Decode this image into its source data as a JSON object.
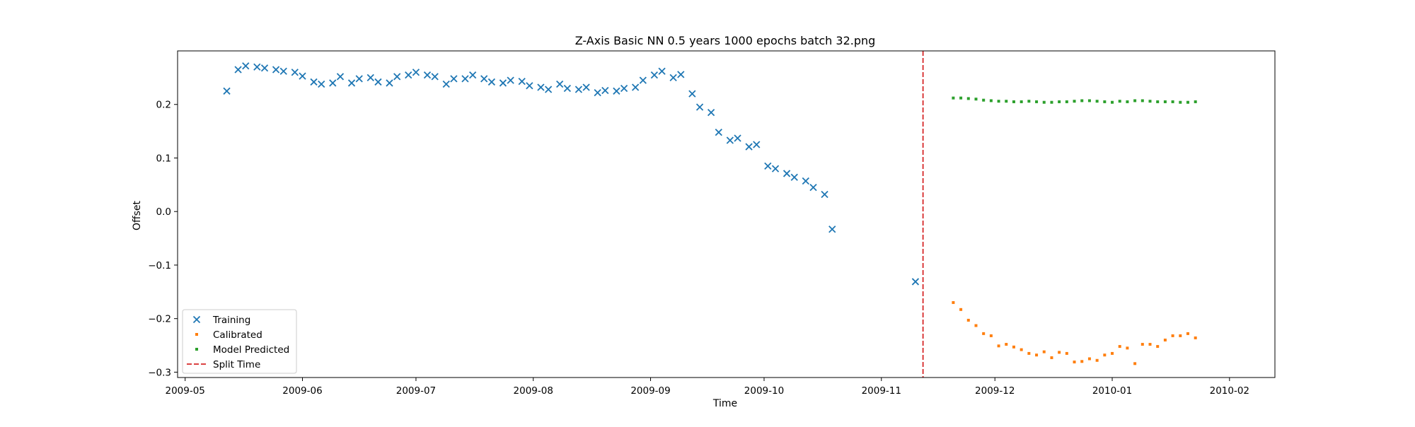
{
  "chart_data": {
    "type": "scatter",
    "title": "Z-Axis Basic NN 0.5 years 1000 epochs batch 32.png",
    "xlabel": "Time",
    "ylabel": "Offset",
    "xlim": [
      "2009-04-29",
      "2010-02-13"
    ],
    "ylim": [
      -0.31,
      0.3
    ],
    "x_ticks": [
      "2009-05",
      "2009-06",
      "2009-07",
      "2009-08",
      "2009-09",
      "2009-10",
      "2009-11",
      "2009-12",
      "2010-01",
      "2010-02"
    ],
    "x_tick_dates": [
      "2009-05-01",
      "2009-06-01",
      "2009-07-01",
      "2009-08-01",
      "2009-09-01",
      "2009-10-01",
      "2009-11-01",
      "2009-12-01",
      "2010-01-01",
      "2010-02-01"
    ],
    "y_ticks": [
      0.2,
      0.1,
      0.0,
      -0.1,
      -0.2,
      -0.3
    ],
    "y_tick_labels": [
      "0.2",
      "0.1",
      "0.0",
      "−0.1",
      "−0.2",
      "−0.3"
    ],
    "grid": false,
    "legend_position": "lower-left",
    "split_time": "2009-11-12",
    "series": [
      {
        "name": "Training",
        "marker": "x",
        "color": "#1f77b4",
        "points": [
          [
            "2009-05-12",
            0.225
          ],
          [
            "2009-05-15",
            0.265
          ],
          [
            "2009-05-17",
            0.272
          ],
          [
            "2009-05-20",
            0.27
          ],
          [
            "2009-05-22",
            0.268
          ],
          [
            "2009-05-25",
            0.265
          ],
          [
            "2009-05-27",
            0.262
          ],
          [
            "2009-05-30",
            0.26
          ],
          [
            "2009-06-01",
            0.253
          ],
          [
            "2009-06-04",
            0.242
          ],
          [
            "2009-06-06",
            0.238
          ],
          [
            "2009-06-09",
            0.24
          ],
          [
            "2009-06-11",
            0.252
          ],
          [
            "2009-06-14",
            0.24
          ],
          [
            "2009-06-16",
            0.248
          ],
          [
            "2009-06-19",
            0.25
          ],
          [
            "2009-06-21",
            0.242
          ],
          [
            "2009-06-24",
            0.24
          ],
          [
            "2009-06-26",
            0.252
          ],
          [
            "2009-06-29",
            0.255
          ],
          [
            "2009-07-01",
            0.26
          ],
          [
            "2009-07-04",
            0.255
          ],
          [
            "2009-07-06",
            0.252
          ],
          [
            "2009-07-09",
            0.238
          ],
          [
            "2009-07-11",
            0.248
          ],
          [
            "2009-07-14",
            0.248
          ],
          [
            "2009-07-16",
            0.255
          ],
          [
            "2009-07-19",
            0.248
          ],
          [
            "2009-07-21",
            0.242
          ],
          [
            "2009-07-24",
            0.24
          ],
          [
            "2009-07-26",
            0.245
          ],
          [
            "2009-07-29",
            0.243
          ],
          [
            "2009-07-31",
            0.235
          ],
          [
            "2009-08-03",
            0.232
          ],
          [
            "2009-08-05",
            0.228
          ],
          [
            "2009-08-08",
            0.238
          ],
          [
            "2009-08-10",
            0.23
          ],
          [
            "2009-08-13",
            0.228
          ],
          [
            "2009-08-15",
            0.232
          ],
          [
            "2009-08-18",
            0.222
          ],
          [
            "2009-08-20",
            0.226
          ],
          [
            "2009-08-23",
            0.225
          ],
          [
            "2009-08-25",
            0.23
          ],
          [
            "2009-08-28",
            0.232
          ],
          [
            "2009-08-30",
            0.245
          ],
          [
            "2009-09-02",
            0.255
          ],
          [
            "2009-09-04",
            0.262
          ],
          [
            "2009-09-07",
            0.25
          ],
          [
            "2009-09-09",
            0.256
          ],
          [
            "2009-09-12",
            0.22
          ],
          [
            "2009-09-14",
            0.195
          ],
          [
            "2009-09-17",
            0.185
          ],
          [
            "2009-09-19",
            0.148
          ],
          [
            "2009-09-22",
            0.133
          ],
          [
            "2009-09-24",
            0.137
          ],
          [
            "2009-09-27",
            0.121
          ],
          [
            "2009-09-29",
            0.125
          ],
          [
            "2009-10-02",
            0.085
          ],
          [
            "2009-10-04",
            0.08
          ],
          [
            "2009-10-07",
            0.071
          ],
          [
            "2009-10-09",
            0.064
          ],
          [
            "2009-10-12",
            0.057
          ],
          [
            "2009-10-14",
            0.045
          ],
          [
            "2009-10-17",
            0.032
          ],
          [
            "2009-10-19",
            -0.033
          ],
          [
            "2009-11-10",
            -0.131
          ]
        ]
      },
      {
        "name": "Calibrated",
        "marker": "dot",
        "color": "#ff7f0e",
        "points": [
          [
            "2009-11-20",
            -0.17
          ],
          [
            "2009-11-22",
            -0.183
          ],
          [
            "2009-11-24",
            -0.203
          ],
          [
            "2009-11-26",
            -0.213
          ],
          [
            "2009-11-28",
            -0.228
          ],
          [
            "2009-11-30",
            -0.232
          ],
          [
            "2009-12-02",
            -0.251
          ],
          [
            "2009-12-04",
            -0.248
          ],
          [
            "2009-12-06",
            -0.253
          ],
          [
            "2009-12-08",
            -0.258
          ],
          [
            "2009-12-10",
            -0.265
          ],
          [
            "2009-12-12",
            -0.268
          ],
          [
            "2009-12-14",
            -0.262
          ],
          [
            "2009-12-16",
            -0.273
          ],
          [
            "2009-12-18",
            -0.263
          ],
          [
            "2009-12-20",
            -0.265
          ],
          [
            "2009-12-22",
            -0.281
          ],
          [
            "2009-12-24",
            -0.28
          ],
          [
            "2009-12-26",
            -0.275
          ],
          [
            "2009-12-28",
            -0.278
          ],
          [
            "2009-12-30",
            -0.268
          ],
          [
            "2010-01-01",
            -0.265
          ],
          [
            "2010-01-03",
            -0.252
          ],
          [
            "2010-01-05",
            -0.255
          ],
          [
            "2010-01-07",
            -0.284
          ],
          [
            "2010-01-09",
            -0.248
          ],
          [
            "2010-01-11",
            -0.248
          ],
          [
            "2010-01-13",
            -0.252
          ],
          [
            "2010-01-15",
            -0.24
          ],
          [
            "2010-01-17",
            -0.232
          ],
          [
            "2010-01-19",
            -0.232
          ],
          [
            "2010-01-21",
            -0.228
          ],
          [
            "2010-01-23",
            -0.236
          ]
        ]
      },
      {
        "name": "Model Predicted",
        "marker": "dot",
        "color": "#2ca02c",
        "points": [
          [
            "2009-11-20",
            0.212
          ],
          [
            "2009-11-22",
            0.212
          ],
          [
            "2009-11-24",
            0.211
          ],
          [
            "2009-11-26",
            0.21
          ],
          [
            "2009-11-28",
            0.208
          ],
          [
            "2009-11-30",
            0.207
          ],
          [
            "2009-12-02",
            0.206
          ],
          [
            "2009-12-04",
            0.206
          ],
          [
            "2009-12-06",
            0.205
          ],
          [
            "2009-12-08",
            0.205
          ],
          [
            "2009-12-10",
            0.206
          ],
          [
            "2009-12-12",
            0.205
          ],
          [
            "2009-12-14",
            0.204
          ],
          [
            "2009-12-16",
            0.204
          ],
          [
            "2009-12-18",
            0.205
          ],
          [
            "2009-12-20",
            0.205
          ],
          [
            "2009-12-22",
            0.206
          ],
          [
            "2009-12-24",
            0.207
          ],
          [
            "2009-12-26",
            0.207
          ],
          [
            "2009-12-28",
            0.206
          ],
          [
            "2009-12-30",
            0.205
          ],
          [
            "2010-01-01",
            0.204
          ],
          [
            "2010-01-03",
            0.206
          ],
          [
            "2010-01-05",
            0.205
          ],
          [
            "2010-01-07",
            0.207
          ],
          [
            "2010-01-09",
            0.207
          ],
          [
            "2010-01-11",
            0.206
          ],
          [
            "2010-01-13",
            0.205
          ],
          [
            "2010-01-15",
            0.205
          ],
          [
            "2010-01-17",
            0.205
          ],
          [
            "2010-01-19",
            0.204
          ],
          [
            "2010-01-21",
            0.204
          ],
          [
            "2010-01-23",
            0.205
          ]
        ]
      }
    ],
    "split_line": {
      "name": "Split Time",
      "color": "#d62728",
      "style": "dashed"
    }
  }
}
